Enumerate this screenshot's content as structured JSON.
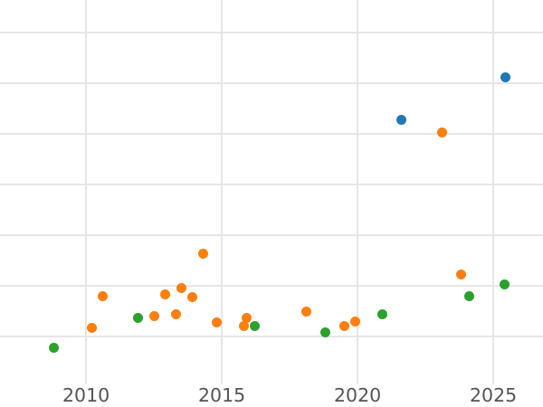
{
  "chart_data": {
    "type": "scatter",
    "title": "",
    "xlabel": "",
    "ylabel": "",
    "grid": true,
    "legend_position": "none",
    "x_ticks": [
      2010,
      2015,
      2020,
      2025
    ],
    "x_tick_labels": [
      "2010",
      "2015",
      "2020",
      "2025"
    ],
    "xlim": [
      2006.83,
      2026.83
    ],
    "ylim": [
      0.05,
      7.64
    ],
    "y_gridline_units": [
      1,
      2,
      3,
      4,
      5,
      6,
      7
    ],
    "y_tick_labels_visible": false,
    "y_unit_note": "y-axis tick labels are cropped out of view; y values estimated in gridline units (bottom visible gridline = 1, one unit per gridline)",
    "series": [
      {
        "name": "blue",
        "color": "#1f77b4",
        "points": [
          [
            2021.6,
            5.27
          ],
          [
            2025.45,
            6.11
          ]
        ]
      },
      {
        "name": "orange",
        "color": "#ff7f0e",
        "points": [
          [
            2010.2,
            1.16
          ],
          [
            2010.6,
            1.8
          ],
          [
            2012.5,
            1.39
          ],
          [
            2012.9,
            1.82
          ],
          [
            2013.3,
            1.43
          ],
          [
            2013.5,
            1.95
          ],
          [
            2013.9,
            1.78
          ],
          [
            2014.3,
            2.63
          ],
          [
            2014.8,
            1.27
          ],
          [
            2015.8,
            1.2
          ],
          [
            2015.9,
            1.37
          ],
          [
            2018.1,
            1.49
          ],
          [
            2019.5,
            1.2
          ],
          [
            2019.9,
            1.29
          ],
          [
            2023.1,
            5.02
          ],
          [
            2023.8,
            2.22
          ]
        ]
      },
      {
        "name": "green",
        "color": "#2ca02c",
        "points": [
          [
            2008.8,
            0.78
          ],
          [
            2011.9,
            1.37
          ],
          [
            2016.2,
            1.2
          ],
          [
            2018.8,
            1.07
          ],
          [
            2020.9,
            1.43
          ],
          [
            2024.1,
            1.79
          ],
          [
            2025.4,
            2.03
          ]
        ]
      }
    ],
    "style": {
      "background_color": "#ffffff",
      "grid_color": "#e6e6e6",
      "tick_label_color": "#555555",
      "marker_diameter_px": 11
    }
  }
}
